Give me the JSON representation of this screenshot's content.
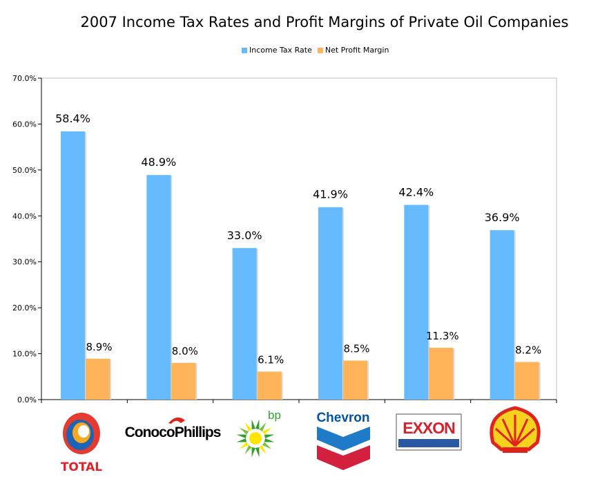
{
  "chart_data": {
    "type": "bar",
    "title": "2007 Income Tax Rates and Profit Margins of Private Oil Companies",
    "xlabel": "",
    "ylabel": "",
    "ylim": [
      0,
      70
    ],
    "yticks": [
      "0.0%",
      "10.0%",
      "20.0%",
      "30.0%",
      "40.0%",
      "50.0%",
      "60.0%",
      "70.0%"
    ],
    "categories": [
      "TOTAL",
      "ConocoPhillips",
      "bp",
      "Chevron",
      "EXXON",
      "Shell"
    ],
    "series": [
      {
        "name": "Income Tax Rate",
        "color": "#66bbff",
        "values": [
          58.4,
          48.9,
          33.0,
          41.9,
          42.4,
          36.9
        ],
        "labels": [
          "58.4%",
          "48.9%",
          "33.0%",
          "41.9%",
          "42.4%",
          "36.9%"
        ]
      },
      {
        "name": "Net Profit Margin",
        "color": "#ffb45a",
        "values": [
          8.9,
          8.0,
          6.1,
          8.5,
          11.3,
          8.2
        ],
        "labels": [
          "8.9%",
          "8.0%",
          "6.1%",
          "8.5%",
          "11.3%",
          "8.2%"
        ]
      }
    ],
    "grid": false,
    "legend_position": "top-center"
  },
  "logos": {
    "total": {
      "text": "TOTAL",
      "icon": "total-logo-icon"
    },
    "conoco": {
      "text": "ConocoPhillips",
      "icon": "conocophillips-logo-icon"
    },
    "bp": {
      "text": "bp",
      "icon": "bp-helios-logo-icon"
    },
    "chevron": {
      "text": "Chevron",
      "icon": "chevron-logo-icon"
    },
    "exxon": {
      "text": "EXXON",
      "icon": "exxon-logo-icon"
    },
    "shell": {
      "icon": "shell-logo-icon"
    }
  }
}
